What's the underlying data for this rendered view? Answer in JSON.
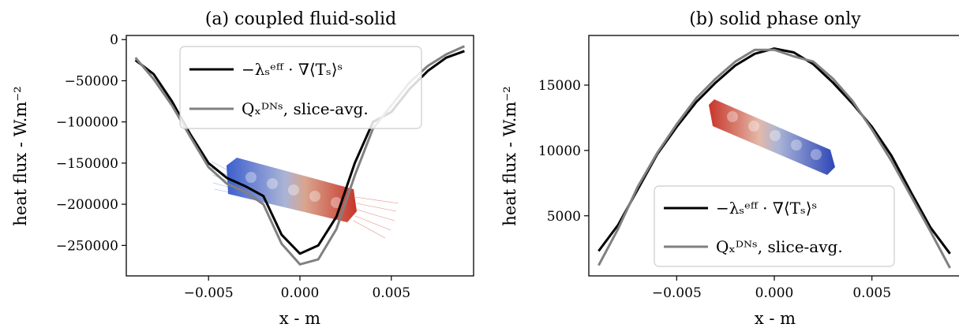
{
  "chart_data": [
    {
      "type": "line",
      "title": "(a) coupled fluid-solid",
      "xlabel": "x - m",
      "ylabel": "heat flux - W.m⁻²",
      "xlim": [
        -0.0095,
        0.0095
      ],
      "ylim": [
        -287000,
        5000
      ],
      "xticks": [
        -0.005,
        0.0,
        0.005
      ],
      "xtick_labels": [
        "−0.005",
        "0.000",
        "0.005"
      ],
      "yticks": [
        0,
        -50000,
        -100000,
        -150000,
        -200000,
        -250000
      ],
      "ytick_labels": [
        "0",
        "−50000",
        "−100000",
        "−150000",
        "−200000",
        "−250000"
      ],
      "grid": false,
      "legend_position": "top-right",
      "series": [
        {
          "name": "−λₛᵉᶠᶠ · ∇⟨Tₛ⟩ˢ",
          "color": "#000000",
          "x": [
            -0.009,
            -0.008,
            -0.007,
            -0.006,
            -0.005,
            -0.004,
            -0.003,
            -0.002,
            -0.001,
            0.0,
            0.001,
            0.002,
            0.003,
            0.004,
            0.005,
            0.006,
            0.007,
            0.008,
            0.009
          ],
          "y": [
            -25000,
            -42000,
            -75000,
            -115000,
            -150000,
            -168000,
            -178000,
            -190000,
            -237000,
            -260000,
            -250000,
            -215000,
            -150000,
            -100000,
            -88000,
            -60000,
            -38000,
            -22000,
            -14000
          ]
        },
        {
          "name": "Qₓᴰᴺˢ, slice-avg.",
          "color": "#808080",
          "x": [
            -0.009,
            -0.008,
            -0.007,
            -0.006,
            -0.005,
            -0.004,
            -0.003,
            -0.002,
            -0.001,
            0.0,
            0.001,
            0.002,
            0.003,
            0.004,
            0.005,
            0.006,
            0.007,
            0.008,
            0.009
          ],
          "y": [
            -22000,
            -48000,
            -80000,
            -118000,
            -155000,
            -175000,
            -185000,
            -200000,
            -248000,
            -273000,
            -267000,
            -230000,
            -165000,
            -108000,
            -80000,
            -52000,
            -32000,
            -18000,
            -8000
          ]
        }
      ]
    },
    {
      "type": "line",
      "title": "(b) solid phase only",
      "xlabel": "x - m",
      "ylabel": "heat flux - W.m⁻²",
      "xlim": [
        -0.0095,
        0.0095
      ],
      "ylim": [
        400,
        18800
      ],
      "xticks": [
        -0.005,
        0.0,
        0.005
      ],
      "xtick_labels": [
        "−0.005",
        "0.000",
        "0.005"
      ],
      "yticks": [
        5000,
        10000,
        15000
      ],
      "ytick_labels": [
        "5000",
        "10000",
        "15000"
      ],
      "grid": false,
      "legend_position": "bottom-right",
      "series": [
        {
          "name": "−λₛᵉᶠᶠ · ∇⟨Tₛ⟩ˢ",
          "color": "#000000",
          "x": [
            -0.009,
            -0.008,
            -0.007,
            -0.006,
            -0.005,
            -0.004,
            -0.003,
            -0.002,
            -0.001,
            0.0,
            0.001,
            0.002,
            0.003,
            0.004,
            0.005,
            0.006,
            0.007,
            0.008,
            0.009
          ],
          "y": [
            2300,
            4300,
            7000,
            9700,
            11800,
            13700,
            15200,
            16500,
            17400,
            17800,
            17500,
            16600,
            15200,
            13600,
            11800,
            9600,
            6800,
            4100,
            2100
          ]
        },
        {
          "name": "Qₓᴰᴺˢ, slice-avg.",
          "color": "#808080",
          "x": [
            -0.009,
            -0.008,
            -0.007,
            -0.006,
            -0.005,
            -0.004,
            -0.003,
            -0.002,
            -0.001,
            0.0,
            0.001,
            0.002,
            0.003,
            0.004,
            0.005,
            0.006,
            0.007,
            0.008,
            0.009
          ],
          "y": [
            1200,
            4000,
            7200,
            9800,
            12000,
            14000,
            15500,
            16800,
            17700,
            17700,
            17200,
            16800,
            15500,
            13800,
            11600,
            9200,
            6500,
            3800,
            1000
          ]
        }
      ]
    }
  ]
}
